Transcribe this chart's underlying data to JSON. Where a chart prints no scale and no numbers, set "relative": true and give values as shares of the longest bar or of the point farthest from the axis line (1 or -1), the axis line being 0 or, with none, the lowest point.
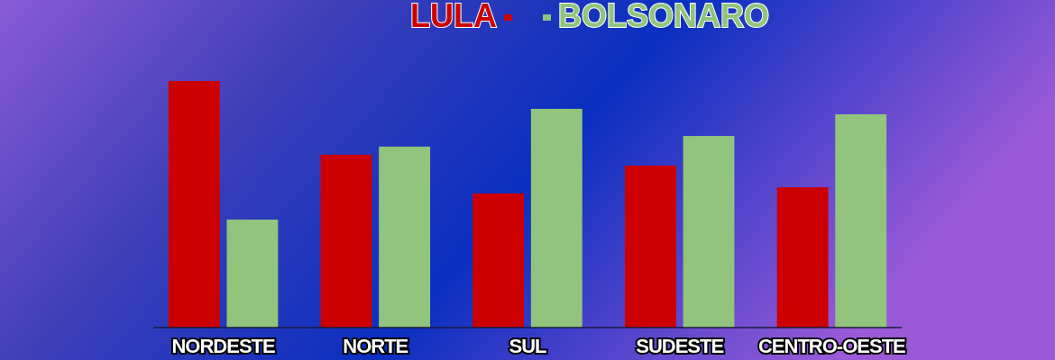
{
  "chart_data": {
    "type": "bar",
    "relative": true,
    "legend": "top",
    "categories": [
      "NORDESTE",
      "NORTE",
      "SUL",
      "SUDESTE",
      "CENTRO-OESTE"
    ],
    "series": [
      {
        "name": "LULA",
        "color": "#cc0000",
        "values": [
          1,
          0.701,
          0.544,
          0.657,
          0.569
        ]
      },
      {
        "name": "BOLSONARO",
        "color": "#93c47d",
        "values": [
          0.438,
          0.734,
          0.887,
          0.777,
          0.865
        ]
      }
    ]
  }
}
